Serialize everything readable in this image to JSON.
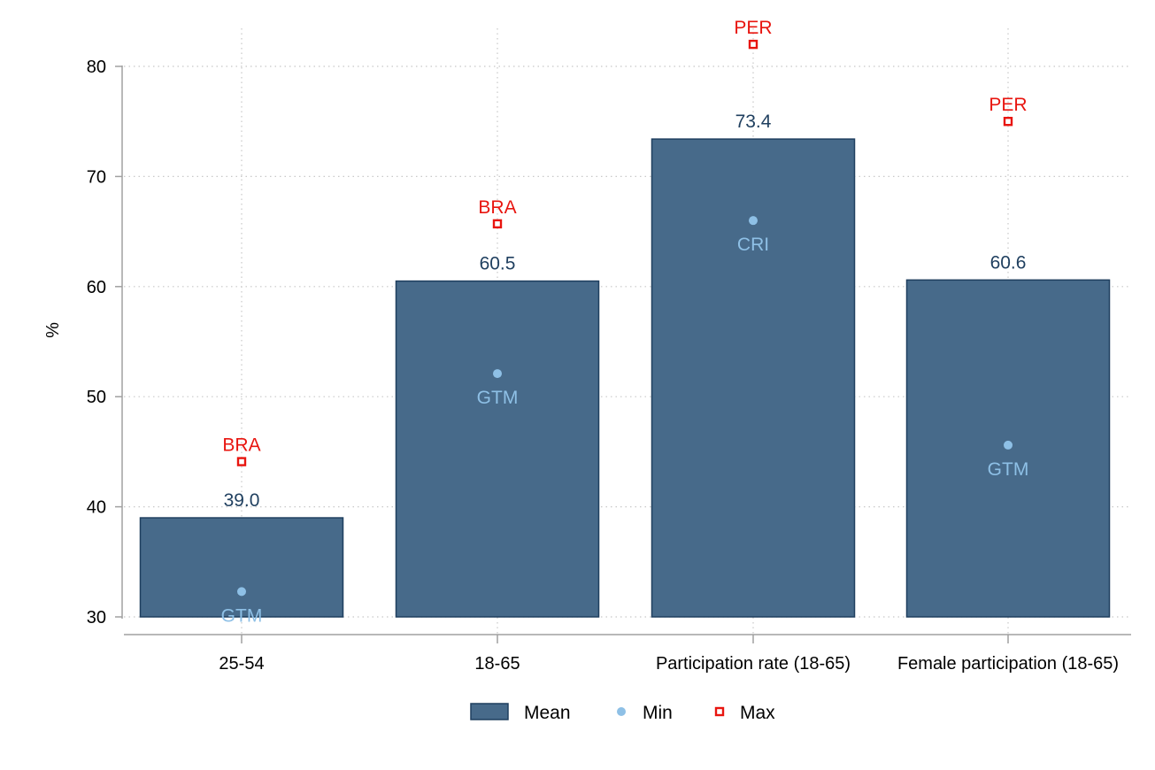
{
  "chart_data": {
    "type": "bar",
    "title": "",
    "xlabel": "",
    "ylabel": "%",
    "ylim": [
      30,
      82
    ],
    "yticks": [
      30,
      40,
      50,
      60,
      70,
      80
    ],
    "grid": true,
    "legend_position": "bottom",
    "categories": [
      "25-54",
      "18-65",
      "Participation rate (18-65)",
      "Female participation (18-65)"
    ],
    "series": [
      {
        "name": "Mean",
        "kind": "bar",
        "color": "#476a8a",
        "values": [
          39.0,
          60.5,
          73.4,
          60.6
        ],
        "labels": [
          "39.0",
          "60.5",
          "73.4",
          "60.6"
        ]
      },
      {
        "name": "Min",
        "kind": "point",
        "marker": "circle",
        "color": "#8ec0e6",
        "values": [
          32.3,
          52.1,
          66.0,
          45.6
        ],
        "labels": [
          "GTM",
          "GTM",
          "CRI",
          "GTM"
        ]
      },
      {
        "name": "Max",
        "kind": "point",
        "marker": "square",
        "color": "#e8150f",
        "values": [
          44.1,
          65.7,
          82.0,
          75.0
        ],
        "labels": [
          "BRA",
          "BRA",
          "PER",
          "PER"
        ]
      }
    ]
  }
}
